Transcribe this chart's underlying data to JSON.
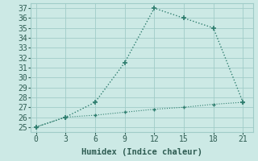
{
  "x": [
    0,
    3,
    6,
    9,
    12,
    15,
    18,
    21
  ],
  "line1_y": [
    25,
    26,
    27.5,
    31.5,
    37,
    36,
    35,
    27.5
  ],
  "line2_y": [
    25,
    26,
    26.2,
    26.5,
    26.8,
    27.0,
    27.3,
    27.5
  ],
  "line_color": "#2e7d6e",
  "bg_color": "#cce9e5",
  "grid_color": "#a0ccc8",
  "xlabel": "Humidex (Indice chaleur)",
  "ylim": [
    24.5,
    37.5
  ],
  "xlim": [
    -0.5,
    22
  ],
  "yticks": [
    25,
    26,
    27,
    28,
    29,
    30,
    31,
    32,
    33,
    34,
    35,
    36,
    37
  ],
  "xticks": [
    0,
    3,
    6,
    9,
    12,
    15,
    18,
    21
  ],
  "font_color": "#2e5c52",
  "xlabel_fontsize": 7.5,
  "tick_fontsize": 7
}
